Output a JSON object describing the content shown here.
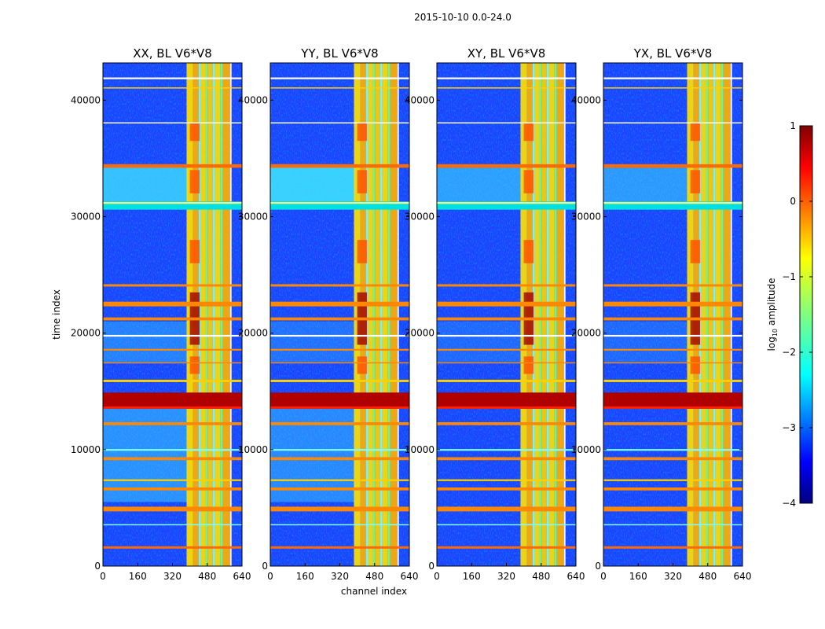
{
  "chart_data": {
    "type": "heatmap",
    "suptitle": "2015-10-10 0.0-24.0",
    "xlabel": "channel index",
    "ylabel": "time index",
    "xlim": [
      0,
      640
    ],
    "ylim": [
      0,
      43200
    ],
    "xticks": [
      "0",
      "160",
      "320",
      "480",
      "640"
    ],
    "yticks": [
      "0",
      "10000",
      "20000",
      "30000",
      "40000"
    ],
    "panels": [
      {
        "title": "XX, BL V6*V8"
      },
      {
        "title": "YY, BL V6*V8"
      },
      {
        "title": "XY, BL V6*V8"
      },
      {
        "title": "YX, BL V6*V8"
      }
    ],
    "colorbar": {
      "label_prefix": "log",
      "label_sub": "10",
      "label_suffix": " amplitude",
      "range": [
        -4,
        1
      ],
      "ticks": [
        "1",
        "0",
        "−1",
        "−2",
        "−3",
        "−4"
      ],
      "colormap": "jet"
    }
  }
}
